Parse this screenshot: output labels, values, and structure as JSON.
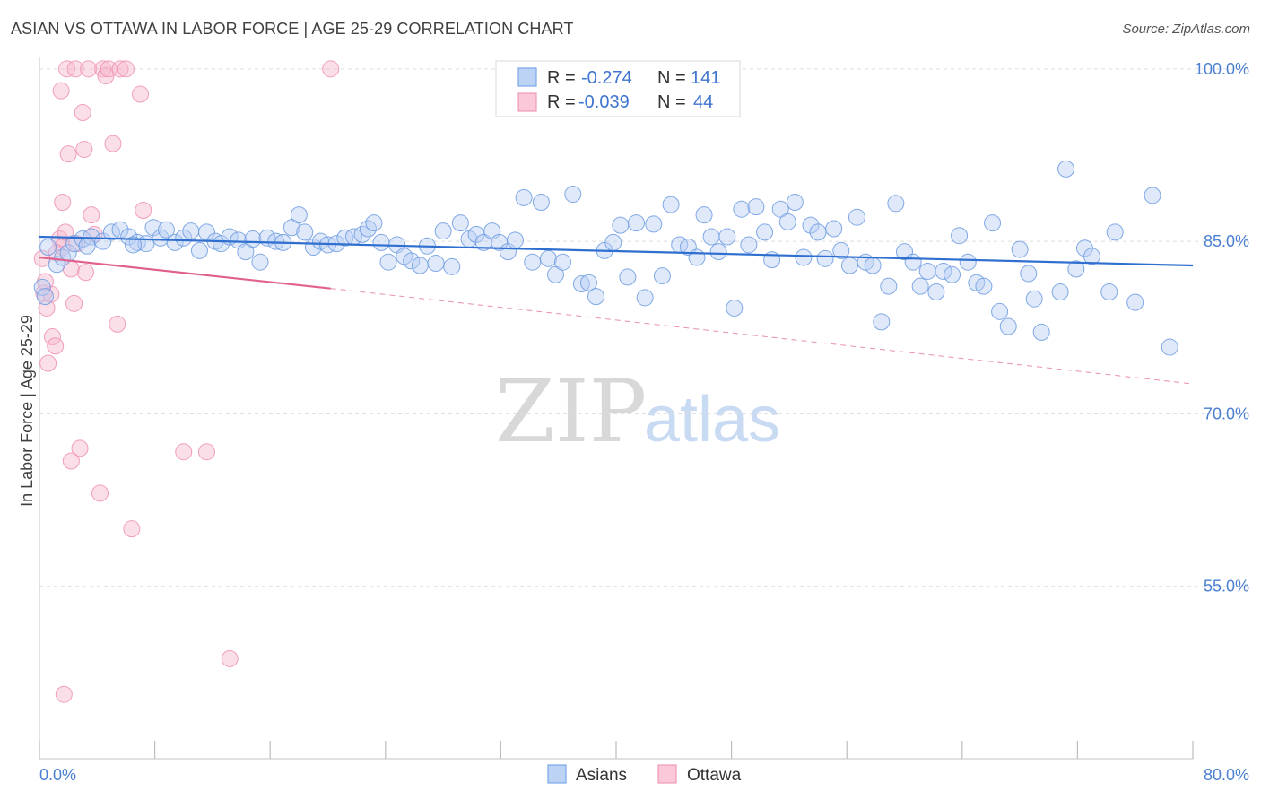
{
  "header": {
    "title": "ASIAN VS OTTAWA IN LABOR FORCE | AGE 25-29 CORRELATION CHART",
    "source": "Source: ZipAtlas.com"
  },
  "watermark": {
    "zip": "ZIP",
    "atlas": "atlas"
  },
  "legend": {
    "rows": [
      {
        "r_label": "R =",
        "r_value": "-0.274",
        "n_label": "N =",
        "n_value": "141",
        "color": "#7aa8e8"
      },
      {
        "r_label": "R =",
        "r_value": "-0.039",
        "n_label": "N =",
        "n_value": "44",
        "color": "#f09ab8"
      }
    ]
  },
  "bottom_legend": {
    "asians": "Asians",
    "ottawa": "Ottawa"
  },
  "chart_data": {
    "type": "scatter",
    "title": "ASIAN VS OTTAWA IN LABOR FORCE | AGE 25-29 CORRELATION CHART",
    "xlabel": "",
    "ylabel": "In Labor Force | Age 25-29",
    "xlim": [
      0,
      80
    ],
    "ylim": [
      40,
      101
    ],
    "x_tick_labels": [
      "0.0%",
      "80.0%"
    ],
    "y_tick_labels": [
      "100.0%",
      "85.0%",
      "70.0%",
      "55.0%"
    ],
    "y_ticks": [
      100,
      85,
      70,
      55
    ],
    "grid": true,
    "colors": {
      "asians": "#7aa8e8",
      "asians_line": "#2f6fcf",
      "ottawa": "#f09ab8",
      "ottawa_line": "#e0608e"
    },
    "series": [
      {
        "name": "Asians",
        "trend": {
          "x": [
            0,
            80
          ],
          "y": [
            85.4,
            82.9
          ]
        },
        "points": [
          [
            0.2,
            81.0
          ],
          [
            0.4,
            80.2
          ],
          [
            1.2,
            83.0
          ],
          [
            1.6,
            83.6
          ],
          [
            2.0,
            84.0
          ],
          [
            2.4,
            84.8
          ],
          [
            3.0,
            85.2
          ],
          [
            3.6,
            85.4
          ],
          [
            4.4,
            85.0
          ],
          [
            5.0,
            85.8
          ],
          [
            5.6,
            86.0
          ],
          [
            6.2,
            85.4
          ],
          [
            6.8,
            84.9
          ],
          [
            7.4,
            84.8
          ],
          [
            7.9,
            86.2
          ],
          [
            8.4,
            85.3
          ],
          [
            8.8,
            86.0
          ],
          [
            9.4,
            84.9
          ],
          [
            10.0,
            85.3
          ],
          [
            10.5,
            85.9
          ],
          [
            11.1,
            84.2
          ],
          [
            11.6,
            85.8
          ],
          [
            12.2,
            85.0
          ],
          [
            12.6,
            84.8
          ],
          [
            13.2,
            85.4
          ],
          [
            13.8,
            85.1
          ],
          [
            14.3,
            84.1
          ],
          [
            14.8,
            85.2
          ],
          [
            15.3,
            83.2
          ],
          [
            15.8,
            85.3
          ],
          [
            16.4,
            85.0
          ],
          [
            16.9,
            84.9
          ],
          [
            17.5,
            86.2
          ],
          [
            18.0,
            87.3
          ],
          [
            18.4,
            85.8
          ],
          [
            19.0,
            84.5
          ],
          [
            19.5,
            85.0
          ],
          [
            20.0,
            84.7
          ],
          [
            20.6,
            84.8
          ],
          [
            21.2,
            85.3
          ],
          [
            21.8,
            85.4
          ],
          [
            22.4,
            85.6
          ],
          [
            22.8,
            86.1
          ],
          [
            23.2,
            86.6
          ],
          [
            23.7,
            84.9
          ],
          [
            24.2,
            83.2
          ],
          [
            24.8,
            84.7
          ],
          [
            25.3,
            83.7
          ],
          [
            25.8,
            83.3
          ],
          [
            26.4,
            82.9
          ],
          [
            26.9,
            84.6
          ],
          [
            27.5,
            83.1
          ],
          [
            28.0,
            85.9
          ],
          [
            28.6,
            82.8
          ],
          [
            29.2,
            86.6
          ],
          [
            29.8,
            85.2
          ],
          [
            30.3,
            85.6
          ],
          [
            30.8,
            84.9
          ],
          [
            31.4,
            85.9
          ],
          [
            31.9,
            84.9
          ],
          [
            32.5,
            84.1
          ],
          [
            33.0,
            85.1
          ],
          [
            33.6,
            88.8
          ],
          [
            34.2,
            83.2
          ],
          [
            34.8,
            88.4
          ],
          [
            35.3,
            83.5
          ],
          [
            35.8,
            82.1
          ],
          [
            36.3,
            83.2
          ],
          [
            37.0,
            89.1
          ],
          [
            37.6,
            81.3
          ],
          [
            38.1,
            81.4
          ],
          [
            38.6,
            80.2
          ],
          [
            39.2,
            84.2
          ],
          [
            39.8,
            84.9
          ],
          [
            40.3,
            86.4
          ],
          [
            40.8,
            81.9
          ],
          [
            41.4,
            86.6
          ],
          [
            42.0,
            80.1
          ],
          [
            42.6,
            86.5
          ],
          [
            43.2,
            82.0
          ],
          [
            43.8,
            88.2
          ],
          [
            44.4,
            84.7
          ],
          [
            45.0,
            84.5
          ],
          [
            45.6,
            83.6
          ],
          [
            46.1,
            87.3
          ],
          [
            46.6,
            85.4
          ],
          [
            47.1,
            84.1
          ],
          [
            47.7,
            85.4
          ],
          [
            48.2,
            79.2
          ],
          [
            48.7,
            87.8
          ],
          [
            49.2,
            84.7
          ],
          [
            49.7,
            88.0
          ],
          [
            50.3,
            85.8
          ],
          [
            50.8,
            83.4
          ],
          [
            51.4,
            87.8
          ],
          [
            51.9,
            86.7
          ],
          [
            52.4,
            88.4
          ],
          [
            53.0,
            83.6
          ],
          [
            53.5,
            86.4
          ],
          [
            54.0,
            85.8
          ],
          [
            54.5,
            83.5
          ],
          [
            55.1,
            86.1
          ],
          [
            55.6,
            84.2
          ],
          [
            56.2,
            82.9
          ],
          [
            56.7,
            87.1
          ],
          [
            57.3,
            83.2
          ],
          [
            57.8,
            82.9
          ],
          [
            58.4,
            78.0
          ],
          [
            58.9,
            81.1
          ],
          [
            59.4,
            88.3
          ],
          [
            60.0,
            84.1
          ],
          [
            60.6,
            83.2
          ],
          [
            61.1,
            81.1
          ],
          [
            61.6,
            82.4
          ],
          [
            62.2,
            80.6
          ],
          [
            62.7,
            82.4
          ],
          [
            63.3,
            82.1
          ],
          [
            63.8,
            85.5
          ],
          [
            64.4,
            83.2
          ],
          [
            65.0,
            81.4
          ],
          [
            65.5,
            81.1
          ],
          [
            66.1,
            86.6
          ],
          [
            66.6,
            78.9
          ],
          [
            67.2,
            77.6
          ],
          [
            68.0,
            84.3
          ],
          [
            68.6,
            82.2
          ],
          [
            69.0,
            80.0
          ],
          [
            69.5,
            77.1
          ],
          [
            70.8,
            80.6
          ],
          [
            71.9,
            82.6
          ],
          [
            72.5,
            84.4
          ],
          [
            73.0,
            83.7
          ],
          [
            74.2,
            80.6
          ],
          [
            74.6,
            85.8
          ],
          [
            76.0,
            79.7
          ],
          [
            77.2,
            89.0
          ],
          [
            78.4,
            75.8
          ],
          [
            71.2,
            91.3
          ],
          [
            0.6,
            84.5
          ],
          [
            3.3,
            84.6
          ],
          [
            6.5,
            84.7
          ]
        ]
      },
      {
        "name": "Ottawa",
        "trend": {
          "x": [
            0,
            20.2
          ],
          "y": [
            83.6,
            80.9
          ]
        },
        "trend_extension": {
          "x": [
            20.2,
            80
          ],
          "y": [
            80.9,
            72.6
          ]
        },
        "points": [
          [
            0.2,
            83.5
          ],
          [
            0.3,
            80.5
          ],
          [
            0.5,
            79.2
          ],
          [
            0.6,
            74.4
          ],
          [
            0.9,
            76.7
          ],
          [
            1.1,
            75.9
          ],
          [
            1.4,
            85.2
          ],
          [
            1.6,
            84.5
          ],
          [
            1.5,
            98.1
          ],
          [
            1.9,
            100.0
          ],
          [
            2.0,
            92.6
          ],
          [
            2.2,
            82.6
          ],
          [
            2.4,
            79.6
          ],
          [
            2.5,
            100.0
          ],
          [
            2.8,
            67.0
          ],
          [
            2.2,
            65.9
          ],
          [
            3.0,
            96.2
          ],
          [
            3.1,
            93.0
          ],
          [
            3.4,
            100.0
          ],
          [
            3.6,
            87.3
          ],
          [
            3.8,
            85.6
          ],
          [
            4.2,
            63.1
          ],
          [
            4.4,
            100.0
          ],
          [
            4.6,
            99.4
          ],
          [
            4.8,
            100.0
          ],
          [
            5.1,
            93.5
          ],
          [
            5.4,
            77.8
          ],
          [
            5.6,
            100.0
          ],
          [
            6.0,
            100.0
          ],
          [
            6.4,
            60.0
          ],
          [
            7.0,
            97.8
          ],
          [
            7.2,
            87.7
          ],
          [
            10.0,
            66.7
          ],
          [
            11.6,
            66.7
          ],
          [
            13.2,
            48.7
          ],
          [
            1.7,
            45.6
          ],
          [
            20.2,
            100.0
          ],
          [
            1.6,
            88.4
          ],
          [
            0.8,
            80.4
          ],
          [
            0.4,
            81.5
          ],
          [
            1.2,
            84.0
          ],
          [
            2.6,
            84.8
          ],
          [
            3.2,
            82.3
          ],
          [
            1.8,
            85.8
          ]
        ]
      }
    ]
  }
}
